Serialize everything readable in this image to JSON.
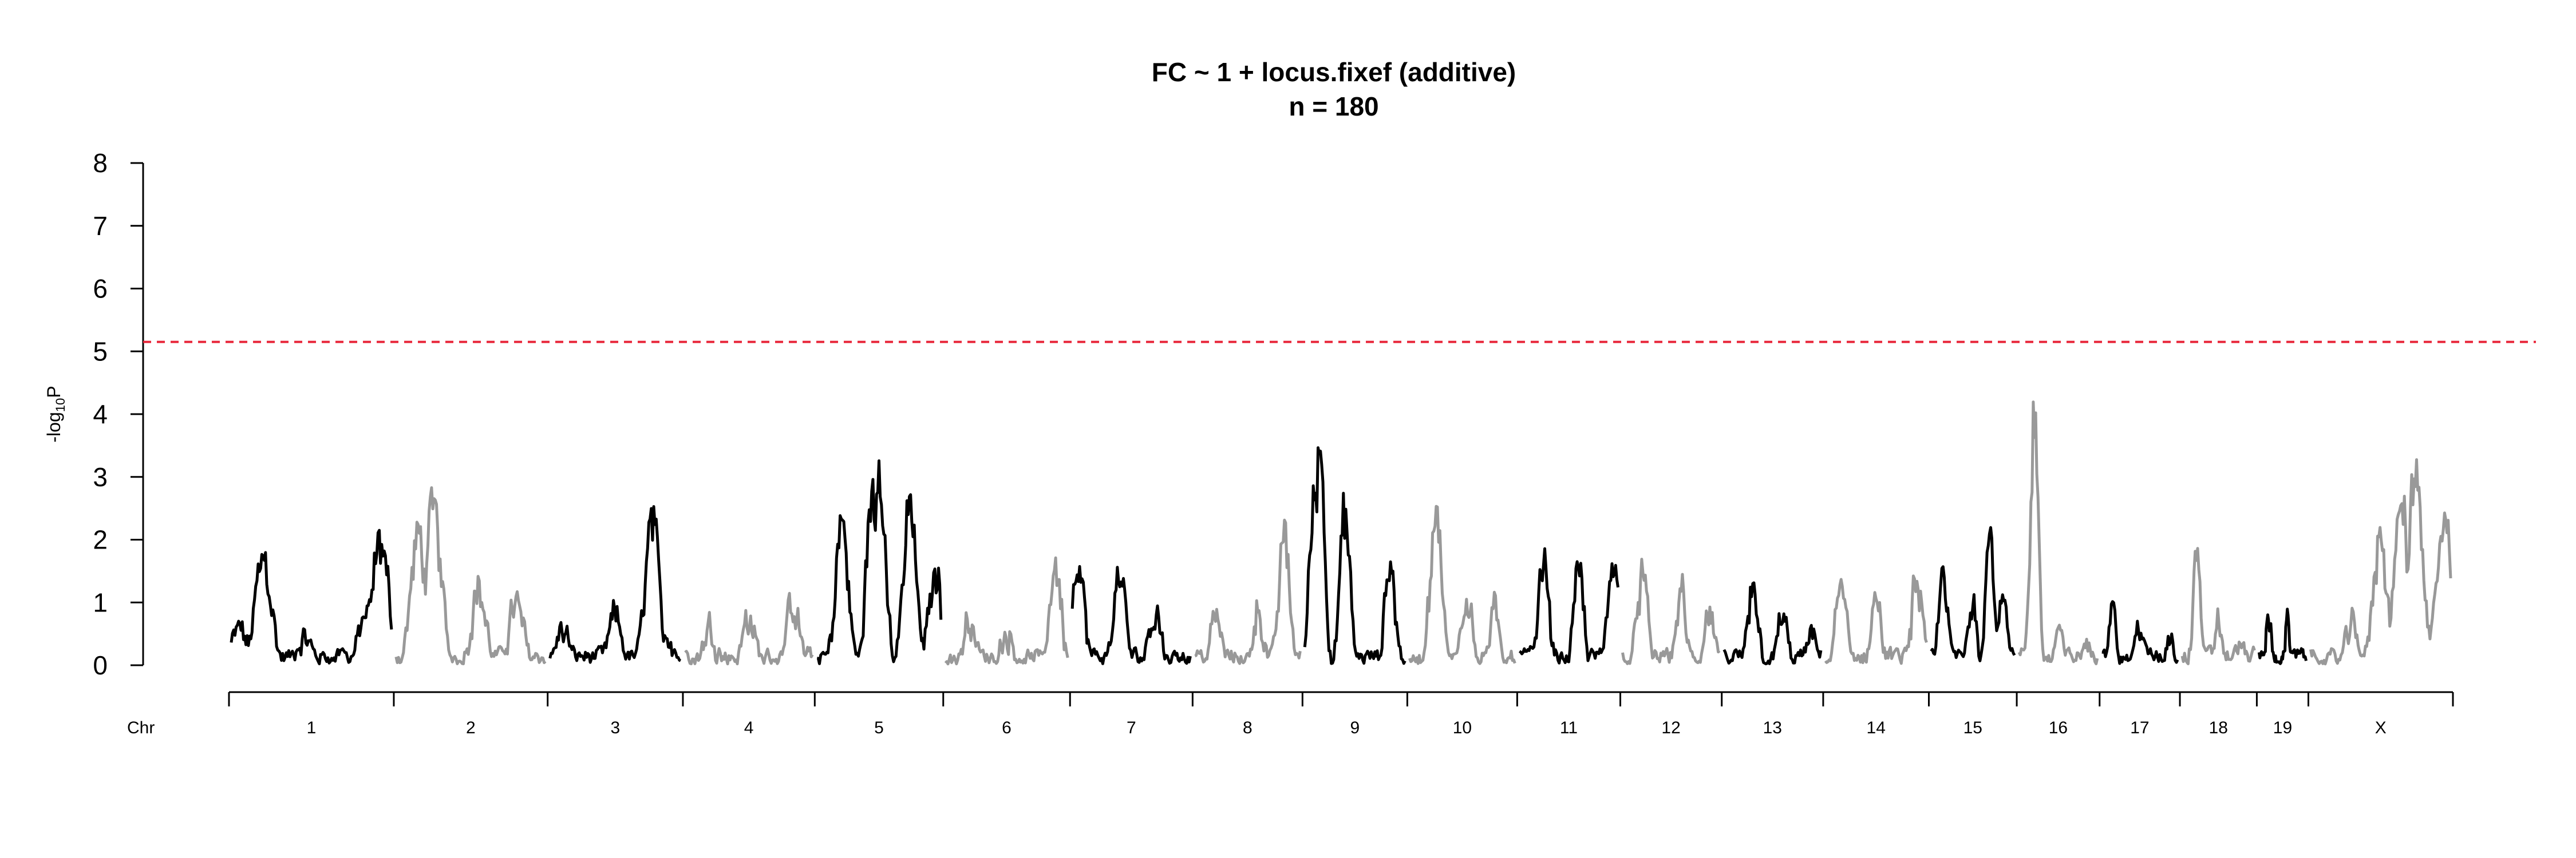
{
  "chart_data": {
    "type": "line",
    "title": "FC ~ 1 + locus.fixef (additive)",
    "subtitle": "n = 180",
    "ylabel_main": "-log",
    "ylabel_sub": "10",
    "ylabel_tail": "P",
    "xlabel": "Chr",
    "ylim": [
      0,
      8
    ],
    "yticks": [
      "0",
      "1",
      "2",
      "3",
      "4",
      "5",
      "6",
      "7",
      "8"
    ],
    "threshold": 5.15,
    "colors": {
      "odd": "#000000",
      "even": "#999999",
      "threshold": "#e8283c"
    },
    "chromosomes": [
      {
        "label": "1",
        "length": 195,
        "peaks": [
          [
            0.05,
            0.6
          ],
          [
            0.2,
            1.8
          ],
          [
            0.45,
            0.5
          ],
          [
            0.85,
            0.9
          ],
          [
            0.93,
            2.1
          ]
        ]
      },
      {
        "label": "2",
        "length": 182,
        "peaks": [
          [
            0.15,
            2.2
          ],
          [
            0.25,
            2.65
          ],
          [
            0.55,
            1.3
          ],
          [
            0.8,
            1.0
          ]
        ]
      },
      {
        "label": "3",
        "length": 160,
        "peaks": [
          [
            0.1,
            0.6
          ],
          [
            0.5,
            0.8
          ],
          [
            0.78,
            2.45
          ],
          [
            0.9,
            0.6
          ]
        ]
      },
      {
        "label": "4",
        "length": 156,
        "peaks": [
          [
            0.2,
            0.7
          ],
          [
            0.5,
            0.8
          ],
          [
            0.85,
            1.0
          ]
        ]
      },
      {
        "label": "5",
        "length": 152,
        "peaks": [
          [
            0.2,
            2.4
          ],
          [
            0.45,
            2.9
          ],
          [
            0.5,
            3.25
          ],
          [
            0.75,
            2.8
          ],
          [
            0.95,
            1.6
          ]
        ]
      },
      {
        "label": "6",
        "length": 150,
        "peaks": [
          [
            0.2,
            0.8
          ],
          [
            0.5,
            0.6
          ],
          [
            0.9,
            1.7
          ]
        ]
      },
      {
        "label": "7",
        "length": 145,
        "peaks": [
          [
            0.05,
            1.75
          ],
          [
            0.4,
            1.5
          ],
          [
            0.7,
            1.0
          ]
        ]
      },
      {
        "label": "8",
        "length": 130,
        "peaks": [
          [
            0.2,
            0.8
          ],
          [
            0.6,
            1.0
          ],
          [
            0.85,
            2.2
          ]
        ]
      },
      {
        "label": "9",
        "length": 124,
        "peaks": [
          [
            0.1,
            3.1
          ],
          [
            0.15,
            3.72
          ],
          [
            0.4,
            2.5
          ],
          [
            0.85,
            1.8
          ]
        ]
      },
      {
        "label": "10",
        "length": 130,
        "peaks": [
          [
            0.25,
            2.6
          ],
          [
            0.55,
            1.4
          ],
          [
            0.8,
            0.8
          ]
        ]
      },
      {
        "label": "11",
        "length": 122,
        "peaks": [
          [
            0.25,
            1.75
          ],
          [
            0.6,
            1.5
          ],
          [
            0.95,
            1.95
          ]
        ]
      },
      {
        "label": "12",
        "length": 120,
        "peaks": [
          [
            0.2,
            1.6
          ],
          [
            0.6,
            1.2
          ],
          [
            0.9,
            0.8
          ]
        ]
      },
      {
        "label": "13",
        "length": 120,
        "peaks": [
          [
            0.3,
            1.5
          ],
          [
            0.6,
            0.8
          ],
          [
            0.9,
            0.5
          ]
        ]
      },
      {
        "label": "14",
        "length": 125,
        "peaks": [
          [
            0.15,
            1.4
          ],
          [
            0.5,
            1.2
          ],
          [
            0.9,
            1.5
          ]
        ]
      },
      {
        "label": "15",
        "length": 104,
        "peaks": [
          [
            0.15,
            1.6
          ],
          [
            0.5,
            1.3
          ],
          [
            0.7,
            2.45
          ],
          [
            0.85,
            1.2
          ]
        ]
      },
      {
        "label": "16",
        "length": 98,
        "peaks": [
          [
            0.2,
            4.35
          ],
          [
            0.5,
            0.6
          ],
          [
            0.85,
            0.4
          ]
        ]
      },
      {
        "label": "17",
        "length": 95,
        "peaks": [
          [
            0.15,
            1.1
          ],
          [
            0.5,
            0.8
          ],
          [
            0.9,
            0.6
          ]
        ]
      },
      {
        "label": "18",
        "length": 91,
        "peaks": [
          [
            0.2,
            2.1
          ],
          [
            0.5,
            0.8
          ],
          [
            0.8,
            0.4
          ]
        ]
      },
      {
        "label": "19",
        "length": 61,
        "peaks": [
          [
            0.2,
            0.85
          ],
          [
            0.6,
            0.95
          ]
        ]
      },
      {
        "label": "X",
        "length": 171,
        "peaks": [
          [
            0.3,
            0.6
          ],
          [
            0.5,
            2.2
          ],
          [
            0.65,
            2.7
          ],
          [
            0.75,
            3.3
          ],
          [
            0.95,
            2.45
          ]
        ]
      }
    ]
  }
}
